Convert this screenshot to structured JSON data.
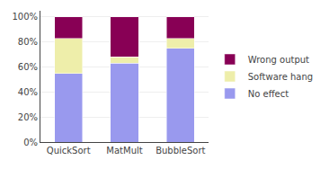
{
  "chart_data": {
    "type": "bar",
    "stacked": true,
    "categories": [
      "QuickSort",
      "MatMult",
      "BubbleSort"
    ],
    "series": [
      {
        "name": "No effect",
        "color": "#9999EE",
        "values": [
          55,
          63,
          75
        ]
      },
      {
        "name": "Software hang",
        "color": "#EEEEAA",
        "values": [
          28,
          5,
          8
        ]
      },
      {
        "name": "Wrong output",
        "color": "#880055",
        "values": [
          17,
          32,
          17
        ]
      }
    ],
    "ylim": [
      0,
      105
    ],
    "yticks": [
      {
        "value": 0,
        "label": "0%"
      },
      {
        "value": 20,
        "label": "20%"
      },
      {
        "value": 40,
        "label": "40%"
      },
      {
        "value": 60,
        "label": "60%"
      },
      {
        "value": 80,
        "label": "80%"
      },
      {
        "value": 100,
        "label": "100%"
      }
    ],
    "grid": true,
    "legend": "right"
  }
}
